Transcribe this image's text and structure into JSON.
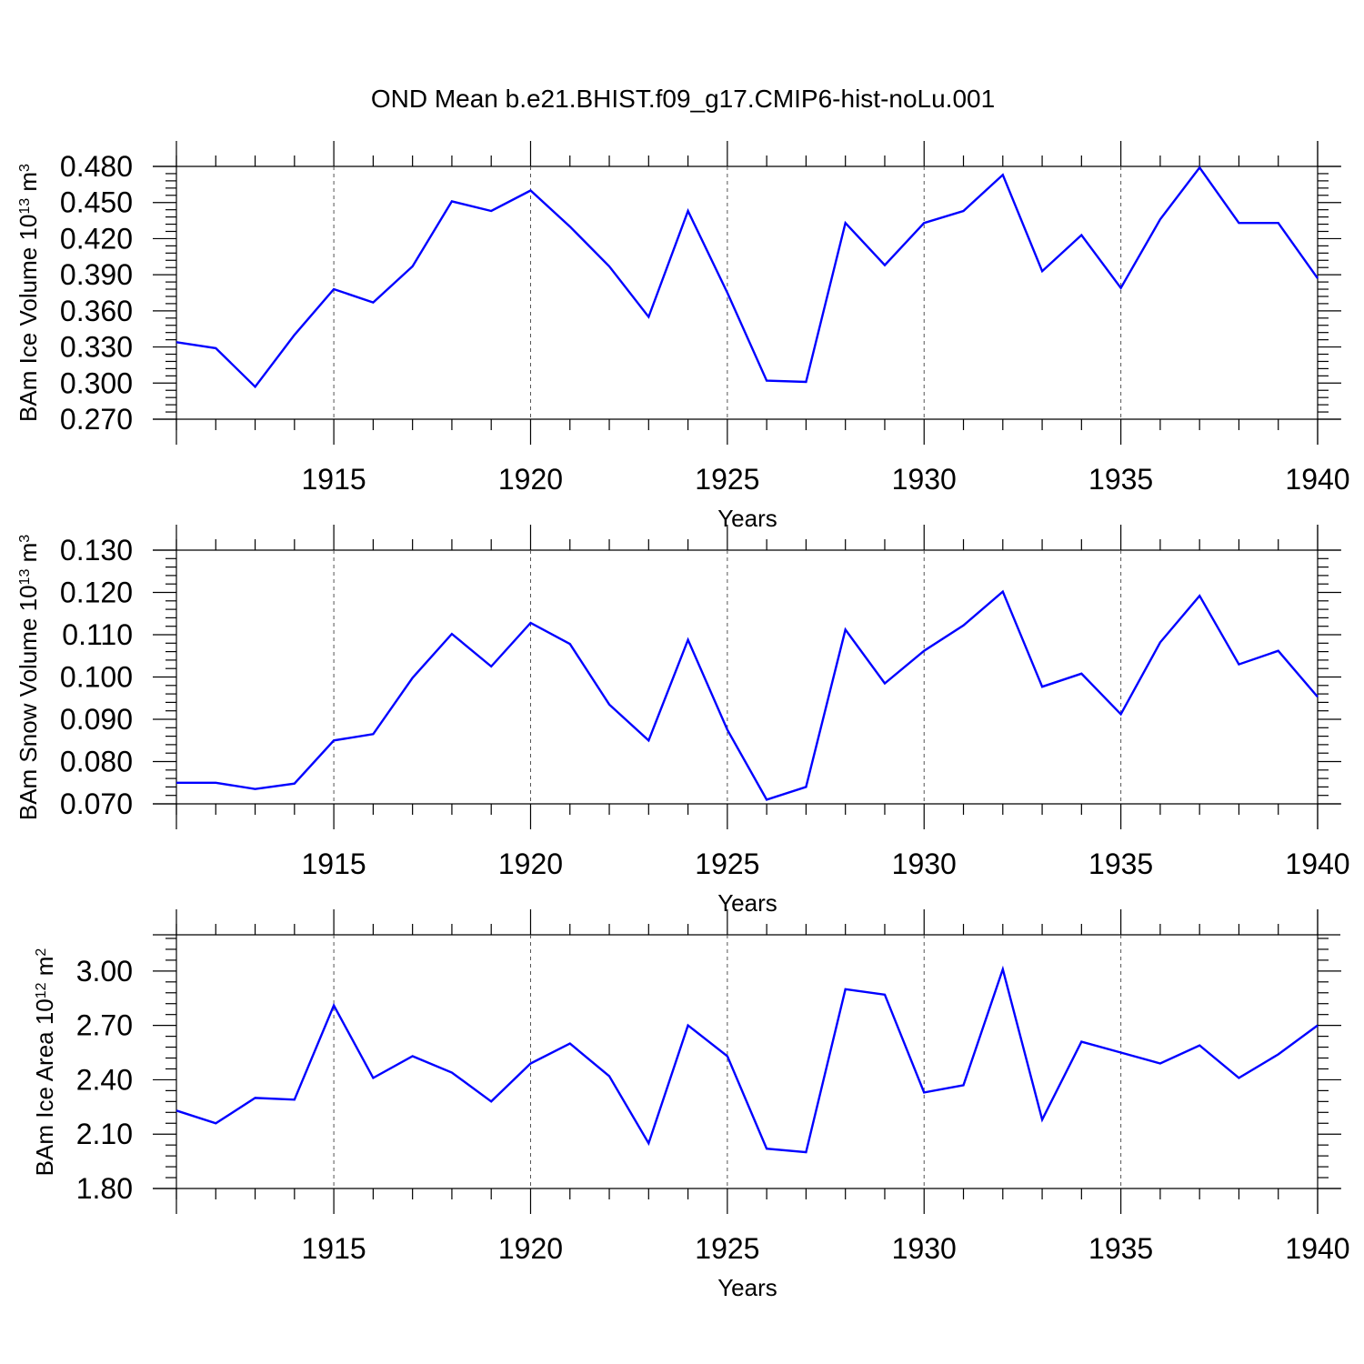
{
  "figure": {
    "title": "OND Mean b.e21.BHIST.f09_g17.CMIP6-hist-noLu.001",
    "line_color": "#0000ff"
  },
  "chart_data": [
    {
      "type": "line",
      "title": "",
      "xlabel": "Years",
      "ylabel": {
        "text": "BAm Ice Volume 10",
        "sup": "13",
        "unit": " m",
        "unit_sup": "3"
      },
      "xlim": [
        1911,
        1940
      ],
      "ylim": [
        0.27,
        0.48
      ],
      "xticks": [
        1915,
        1920,
        1925,
        1930,
        1935,
        1940
      ],
      "yticks": [
        "0.270",
        "0.300",
        "0.330",
        "0.360",
        "0.390",
        "0.420",
        "0.450",
        "0.480"
      ],
      "grid_x": [
        1915,
        1920,
        1925,
        1930,
        1935
      ],
      "x": [
        1911,
        1912,
        1913,
        1914,
        1915,
        1916,
        1917,
        1918,
        1919,
        1920,
        1921,
        1922,
        1923,
        1924,
        1925,
        1926,
        1927,
        1928,
        1929,
        1930,
        1931,
        1932,
        1933,
        1934,
        1935,
        1936,
        1937,
        1938,
        1939,
        1940
      ],
      "series": [
        {
          "values": [
            0.334,
            0.329,
            0.297,
            0.34,
            0.378,
            0.367,
            0.397,
            0.451,
            0.443,
            0.46,
            0.43,
            0.397,
            0.355,
            0.443,
            0.375,
            0.302,
            0.301,
            0.433,
            0.398,
            0.433,
            0.443,
            0.473,
            0.393,
            0.423,
            0.379,
            0.436,
            0.479,
            0.433,
            0.433,
            0.387
          ]
        }
      ]
    },
    {
      "type": "line",
      "title": "",
      "xlabel": "Years",
      "ylabel": {
        "text": "BAm Snow Volume 10",
        "sup": "13",
        "unit": " m",
        "unit_sup": "3"
      },
      "xlim": [
        1911,
        1940
      ],
      "ylim": [
        0.07,
        0.13
      ],
      "xticks": [
        1915,
        1920,
        1925,
        1930,
        1935,
        1940
      ],
      "yticks": [
        "0.070",
        "0.080",
        "0.090",
        "0.100",
        "0.110",
        "0.120",
        "0.130"
      ],
      "grid_x": [
        1915,
        1920,
        1925,
        1930,
        1935
      ],
      "x": [
        1911,
        1912,
        1913,
        1914,
        1915,
        1916,
        1917,
        1918,
        1919,
        1920,
        1921,
        1922,
        1923,
        1924,
        1925,
        1926,
        1927,
        1928,
        1929,
        1930,
        1931,
        1932,
        1933,
        1934,
        1935,
        1936,
        1937,
        1938,
        1939,
        1940
      ],
      "series": [
        {
          "values": [
            0.075,
            0.075,
            0.0735,
            0.0748,
            0.085,
            0.0865,
            0.0998,
            0.1102,
            0.1025,
            0.1128,
            0.1078,
            0.0935,
            0.085,
            0.1088,
            0.0875,
            0.071,
            0.074,
            0.1112,
            0.0985,
            0.1062,
            0.1122,
            0.1202,
            0.0977,
            0.1008,
            0.0912,
            0.1082,
            0.1192,
            0.103,
            0.1062,
            0.0953
          ]
        }
      ]
    },
    {
      "type": "line",
      "title": "",
      "xlabel": "Years",
      "ylabel": {
        "text": "BAm Ice Area 10",
        "sup": "12",
        "unit": " m",
        "unit_sup": "2"
      },
      "xlim": [
        1911,
        1940
      ],
      "ylim": [
        1.8,
        3.2
      ],
      "xticks": [
        1915,
        1920,
        1925,
        1930,
        1935,
        1940
      ],
      "yticks": [
        "1.80",
        "2.10",
        "2.40",
        "2.70",
        "3.00"
      ],
      "grid_x": [
        1915,
        1920,
        1925,
        1930,
        1935
      ],
      "x": [
        1911,
        1912,
        1913,
        1914,
        1915,
        1916,
        1917,
        1918,
        1919,
        1920,
        1921,
        1922,
        1923,
        1924,
        1925,
        1926,
        1927,
        1928,
        1929,
        1930,
        1931,
        1932,
        1933,
        1934,
        1935,
        1936,
        1937,
        1938,
        1939,
        1940
      ],
      "series": [
        {
          "values": [
            2.23,
            2.16,
            2.3,
            2.29,
            2.81,
            2.41,
            2.53,
            2.44,
            2.28,
            2.49,
            2.6,
            2.42,
            2.05,
            2.7,
            2.53,
            2.02,
            2.0,
            2.9,
            2.87,
            2.33,
            2.37,
            3.01,
            2.18,
            2.61,
            2.55,
            2.49,
            2.59,
            2.41,
            2.54,
            2.7
          ]
        }
      ]
    }
  ]
}
